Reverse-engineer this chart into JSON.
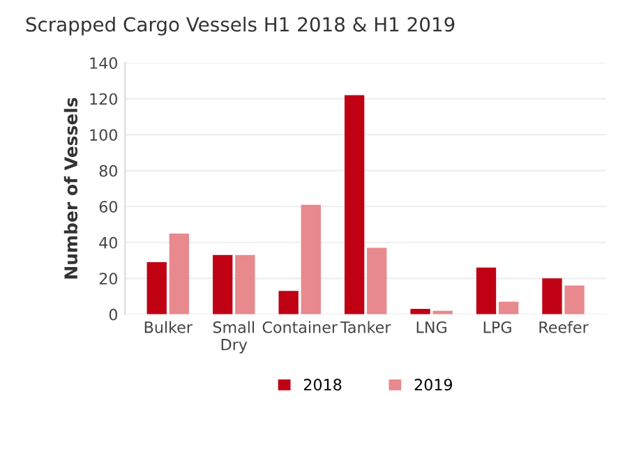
{
  "chart_data": {
    "type": "bar",
    "title": "Scrapped Cargo Vessels H1 2018 & H1 2019",
    "ylabel": "Number of Vessels",
    "categories": [
      "Bulker",
      "Small\nDry",
      "Container",
      "Tanker",
      "LNG",
      "LPG",
      "Reefer"
    ],
    "series": [
      {
        "name": "2018",
        "color": "#c00013",
        "values": [
          29,
          33,
          13,
          122,
          3,
          26,
          20
        ]
      },
      {
        "name": "2019",
        "color": "#e8898d",
        "values": [
          45,
          33,
          61,
          37,
          2,
          7,
          16
        ]
      }
    ],
    "ylim": [
      0,
      140
    ],
    "yticks": [
      0,
      20,
      40,
      60,
      80,
      100,
      120,
      140
    ],
    "grid": "y",
    "legend": "bottom"
  }
}
